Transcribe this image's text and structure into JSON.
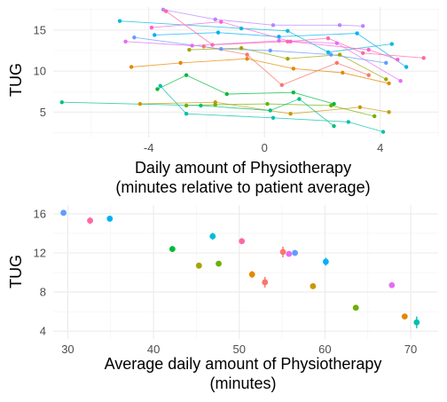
{
  "chart_data": [
    {
      "type": "scatter",
      "description_of_marks": "per-patient points connected by thin lines",
      "xlabel_line1": "Daily amount of Physiotherapy",
      "xlabel_line2": "(minutes relative to patient average)",
      "ylabel": "TUG",
      "xlim": [
        -7.3,
        6
      ],
      "ylim": [
        1.9,
        17.8
      ],
      "xticks": [
        -4,
        0,
        4
      ],
      "yticks": [
        5,
        10,
        15
      ],
      "grid": true,
      "legend": "none",
      "patients": [
        {
          "color": "#F8766D",
          "points": [
            [
              -2.1,
              13.0
            ],
            [
              -0.6,
              12.0
            ],
            [
              0.6,
              8.3
            ],
            [
              2.5,
              11.0
            ],
            [
              3.6,
              9.5
            ]
          ]
        },
        {
          "color": "#E58700",
          "points": [
            [
              -4.6,
              10.5
            ],
            [
              -2.9,
              11.0
            ],
            [
              -0.6,
              11.5
            ],
            [
              1.0,
              10.3
            ],
            [
              2.7,
              9.8
            ],
            [
              4.3,
              8.5
            ]
          ]
        },
        {
          "color": "#C99800",
          "points": [
            [
              -4.3,
              6.0
            ],
            [
              -1.7,
              6.2
            ],
            [
              0.9,
              4.8
            ],
            [
              3.3,
              5.6
            ],
            [
              4.3,
              5.0
            ]
          ]
        },
        {
          "color": "#A3A500",
          "points": [
            [
              -2.6,
              12.6
            ],
            [
              -0.8,
              12.8
            ],
            [
              0.8,
              11.5
            ],
            [
              2.6,
              12.0
            ],
            [
              4.2,
              9.0
            ]
          ]
        },
        {
          "color": "#6BB100",
          "points": [
            [
              -2.7,
              5.8
            ],
            [
              -1.7,
              5.9
            ],
            [
              0.1,
              6.0
            ],
            [
              2.3,
              5.8
            ],
            [
              3.8,
              4.5
            ]
          ]
        },
        {
          "color": "#00BA38",
          "points": [
            [
              -3.7,
              7.8
            ],
            [
              -2.7,
              9.5
            ],
            [
              -1.3,
              7.2
            ],
            [
              1.0,
              7.4
            ],
            [
              2.4,
              6.0
            ]
          ]
        },
        {
          "color": "#00BF7D",
          "points": [
            [
              -7.0,
              6.2
            ],
            [
              -2.2,
              5.8
            ],
            [
              0.2,
              5.2
            ],
            [
              1.2,
              6.6
            ],
            [
              2.4,
              3.3
            ]
          ]
        },
        {
          "color": "#00C0AF",
          "points": [
            [
              -3.6,
              8.2
            ],
            [
              -2.7,
              4.8
            ],
            [
              0.3,
              4.3
            ],
            [
              2.9,
              3.8
            ],
            [
              4.1,
              2.6
            ]
          ]
        },
        {
          "color": "#00BCD8",
          "points": [
            [
              -5.0,
              16.1
            ],
            [
              -0.8,
              15.2
            ],
            [
              0.8,
              14.9
            ],
            [
              2.2,
              12.3
            ],
            [
              4.4,
              13.3
            ]
          ]
        },
        {
          "color": "#00B0F6",
          "points": [
            [
              -3.8,
              14.4
            ],
            [
              -1.6,
              14.7
            ],
            [
              0.5,
              14.2
            ],
            [
              3.2,
              14.6
            ],
            [
              4.9,
              10.5
            ]
          ]
        },
        {
          "color": "#619CFF",
          "points": [
            [
              -4.5,
              14.1
            ],
            [
              -1.5,
              12.7
            ],
            [
              0.2,
              12.5
            ],
            [
              2.3,
              12.0
            ],
            [
              4.2,
              11.0
            ]
          ]
        },
        {
          "color": "#B983FF",
          "points": [
            [
              -3.5,
              17.5
            ],
            [
              -1.7,
              16.3
            ],
            [
              0.3,
              15.6
            ],
            [
              2.6,
              15.6
            ],
            [
              3.4,
              15.5
            ]
          ]
        },
        {
          "color": "#E76BF3",
          "points": [
            [
              -4.8,
              13.6
            ],
            [
              -2.5,
              13.1
            ],
            [
              0.5,
              13.7
            ],
            [
              2.5,
              13.4
            ],
            [
              4.7,
              8.8
            ]
          ]
        },
        {
          "color": "#FD61D1",
          "points": [
            [
              -3.9,
              15.3
            ],
            [
              -1.5,
              16.0
            ],
            [
              0.9,
              13.6
            ],
            [
              3.6,
              12.6
            ],
            [
              4.6,
              11.4
            ]
          ]
        },
        {
          "color": "#FF67A4",
          "points": [
            [
              -3.4,
              17.3
            ],
            [
              -1.8,
              13.2
            ],
            [
              0.8,
              13.6
            ],
            [
              2.2,
              14.0
            ],
            [
              3.4,
              12.2
            ],
            [
              5.5,
              11.6
            ]
          ]
        }
      ]
    },
    {
      "type": "scatter",
      "description_of_marks": "patient means with vertical error bars",
      "xlabel_line1": "Average daily amount of Physiotherapy",
      "xlabel_line2": "(minutes)",
      "ylabel": "TUG",
      "xlim": [
        28.3,
        73.2
      ],
      "ylim": [
        3.2,
        16.9
      ],
      "xticks": [
        30,
        40,
        50,
        60,
        70
      ],
      "yticks": [
        4,
        8,
        12,
        16
      ],
      "grid": true,
      "legend": "none",
      "points": [
        {
          "x": 29.5,
          "y": 16.1,
          "err": 0.2,
          "color": "#619CFF"
        },
        {
          "x": 32.6,
          "y": 15.3,
          "err": 0.35,
          "color": "#FF67A4"
        },
        {
          "x": 34.9,
          "y": 15.5,
          "err": 0.25,
          "color": "#00B0F6"
        },
        {
          "x": 42.2,
          "y": 12.4,
          "err": 0.3,
          "color": "#00BA38"
        },
        {
          "x": 45.3,
          "y": 10.7,
          "err": 0.2,
          "color": "#A3A500"
        },
        {
          "x": 47.6,
          "y": 10.9,
          "err": 0.2,
          "color": "#6BB100"
        },
        {
          "x": 46.9,
          "y": 13.7,
          "err": 0.35,
          "color": "#00BCD8"
        },
        {
          "x": 50.3,
          "y": 13.2,
          "err": 0.3,
          "color": "#FF67A4"
        },
        {
          "x": 51.5,
          "y": 9.8,
          "err": 0.35,
          "color": "#E58700"
        },
        {
          "x": 53.0,
          "y": 9.0,
          "err": 0.55,
          "color": "#F8766D"
        },
        {
          "x": 55.1,
          "y": 12.1,
          "err": 0.55,
          "color": "#F8766D"
        },
        {
          "x": 55.8,
          "y": 11.9,
          "err": 0.25,
          "color": "#E76BF3"
        },
        {
          "x": 56.5,
          "y": 12.0,
          "err": 0.3,
          "color": "#619CFF"
        },
        {
          "x": 58.6,
          "y": 8.6,
          "err": 0.3,
          "color": "#C99800"
        },
        {
          "x": 60.1,
          "y": 11.1,
          "err": 0.4,
          "color": "#00B0F6"
        },
        {
          "x": 63.6,
          "y": 6.4,
          "err": 0.15,
          "color": "#6BB100"
        },
        {
          "x": 67.8,
          "y": 8.7,
          "err": 0.25,
          "color": "#E76BF3"
        },
        {
          "x": 69.3,
          "y": 5.5,
          "err": 0.2,
          "color": "#E58700"
        },
        {
          "x": 70.7,
          "y": 4.9,
          "err": 0.6,
          "color": "#00C0AF"
        }
      ]
    }
  ]
}
